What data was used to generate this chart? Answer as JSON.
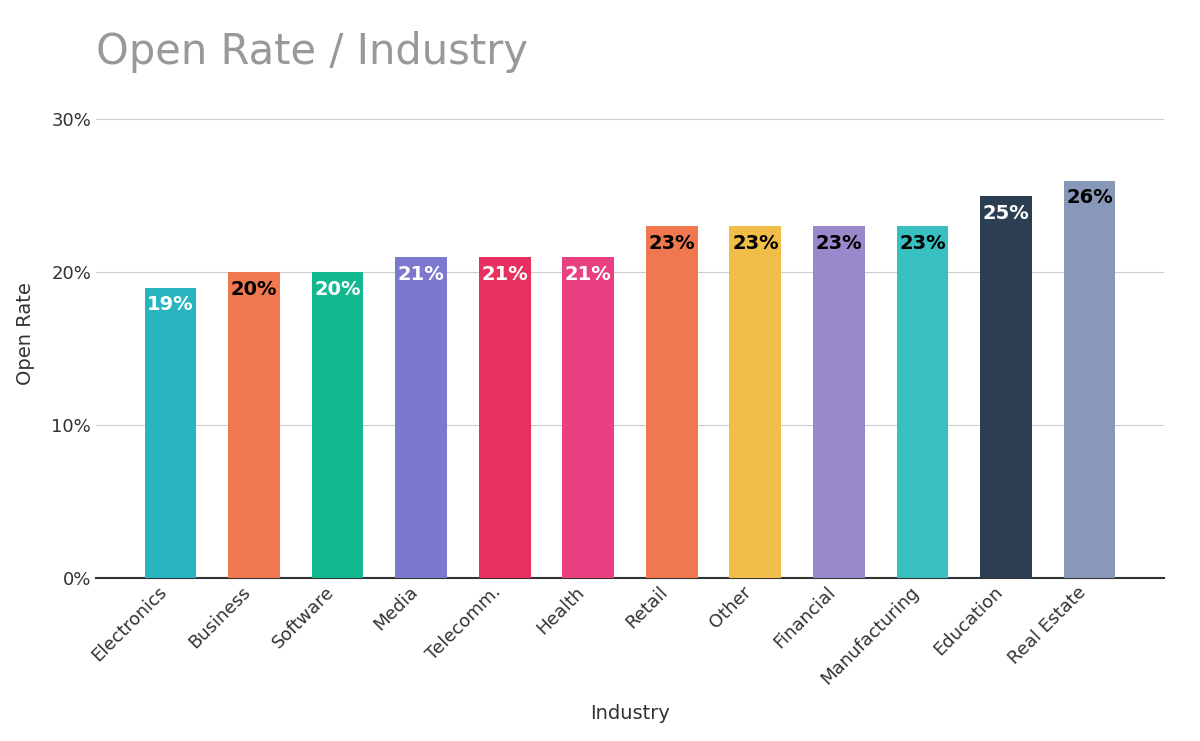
{
  "title": "Open Rate / Industry",
  "xlabel": "Industry",
  "ylabel": "Open Rate",
  "categories": [
    "Electronics",
    "Business",
    "Software",
    "Media",
    "Telecomm.",
    "Health",
    "Retail",
    "Other",
    "Financial",
    "Manufacturing",
    "Education",
    "Real Estate"
  ],
  "values": [
    19,
    20,
    20,
    21,
    21,
    21,
    23,
    23,
    23,
    23,
    25,
    26
  ],
  "bar_colors": [
    "#29b5c0",
    "#f07850",
    "#12b890",
    "#7b78ce",
    "#e83060",
    "#e84080",
    "#f07850",
    "#f0be48",
    "#9888cc",
    "#38c0c0",
    "#2c3e52",
    "#8898b8"
  ],
  "label_colors": [
    "white",
    "black",
    "white",
    "white",
    "white",
    "white",
    "black",
    "black",
    "black",
    "black",
    "white",
    "black"
  ],
  "ylim": [
    0,
    32
  ],
  "yticks": [
    0,
    10,
    20,
    30
  ],
  "ytick_labels": [
    "0%",
    "10%",
    "20%",
    "30%"
  ],
  "title_fontsize": 30,
  "axis_label_fontsize": 14,
  "tick_fontsize": 13,
  "bar_label_fontsize": 14,
  "background_color": "#ffffff",
  "grid_color": "#cccccc",
  "title_color": "#999999",
  "axis_label_color": "#333333",
  "tick_color": "#333333"
}
